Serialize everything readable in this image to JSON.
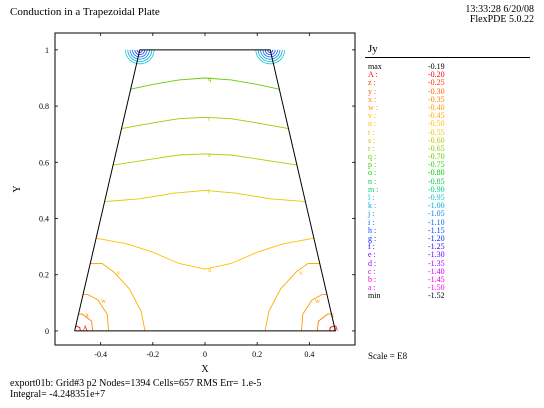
{
  "header": {
    "title": "Conduction in a Trapezoidal Plate",
    "time_date": "13:33:28 6/20/08",
    "version": "FlexPDE 5.0.22"
  },
  "footer": {
    "line1": "export01b:  Grid#3  p2  Nodes=1394 Cells=657 RMS Err= 1.e-5",
    "line2": "Integral= -4.248351e+7"
  },
  "legend": {
    "variable": "Jy",
    "max": {
      "key": "max",
      "value": "-0.19"
    },
    "levels": [
      {
        "key": "A :",
        "value": "-0.20",
        "color": "#ff0000"
      },
      {
        "key": "z :",
        "value": "-0.25",
        "color": "#ff3300"
      },
      {
        "key": "y :",
        "value": "-0.30",
        "color": "#ff6600"
      },
      {
        "key": "x :",
        "value": "-0.35",
        "color": "#ff8000"
      },
      {
        "key": "w :",
        "value": "-0.40",
        "color": "#ff9900"
      },
      {
        "key": "v :",
        "value": "-0.45",
        "color": "#ffad00"
      },
      {
        "key": "u :",
        "value": "-0.50",
        "color": "#ffc000"
      },
      {
        "key": "t :",
        "value": "-0.55",
        "color": "#e6c800"
      },
      {
        "key": "s :",
        "value": "-0.60",
        "color": "#bcc800"
      },
      {
        "key": "r :",
        "value": "-0.65",
        "color": "#99cc00"
      },
      {
        "key": "q :",
        "value": "-0.70",
        "color": "#66cc00"
      },
      {
        "key": "p :",
        "value": "-0.75",
        "color": "#33cc00"
      },
      {
        "key": "o :",
        "value": "-0.80",
        "color": "#00cc00"
      },
      {
        "key": "n :",
        "value": "-0.85",
        "color": "#00cc44"
      },
      {
        "key": "m :",
        "value": "-0.90",
        "color": "#00cc88"
      },
      {
        "key": "l :",
        "value": "-0.95",
        "color": "#00cccc"
      },
      {
        "key": "k :",
        "value": "-1.00",
        "color": "#00aadd"
      },
      {
        "key": "j :",
        "value": "-1.05",
        "color": "#0088ee"
      },
      {
        "key": "i :",
        "value": "-1.10",
        "color": "#0066ff"
      },
      {
        "key": "h :",
        "value": "-1.15",
        "color": "#0044ff"
      },
      {
        "key": "g :",
        "value": "-1.20",
        "color": "#0022ff"
      },
      {
        "key": "f :",
        "value": "-1.25",
        "color": "#3300ff"
      },
      {
        "key": "e :",
        "value": "-1.30",
        "color": "#6600ff"
      },
      {
        "key": "d :",
        "value": "-1.35",
        "color": "#9900ff"
      },
      {
        "key": "c :",
        "value": "-1.40",
        "color": "#cc00ff"
      },
      {
        "key": "b :",
        "value": "-1.45",
        "color": "#e600cc"
      },
      {
        "key": "a :",
        "value": "-1.50",
        "color": "#ff00ff"
      }
    ],
    "min": {
      "key": "min",
      "value": "-1.52"
    },
    "scale": "Scale = E8"
  },
  "chart_data": {
    "type": "contour",
    "title": "Conduction in a Trapezoidal Plate",
    "variable": "Jy",
    "xlabel": "X",
    "ylabel": "Y",
    "xlim": [
      -0.575,
      0.575
    ],
    "ylim": [
      -0.05,
      1.06
    ],
    "xticks": [
      -0.4,
      -0.2,
      0,
      0.2,
      0.4
    ],
    "yticks": [
      0,
      0.2,
      0.4,
      0.6,
      0.8,
      1
    ],
    "domain_outline": [
      [
        -0.5,
        0
      ],
      [
        0.5,
        0
      ],
      [
        0.25,
        1
      ],
      [
        -0.25,
        1
      ],
      [
        -0.5,
        0
      ]
    ],
    "contours": [
      {
        "label": "q",
        "level": -0.7,
        "points": [
          [
            -0.285,
            0.86
          ],
          [
            -0.2,
            0.877
          ],
          [
            -0.1,
            0.893
          ],
          [
            0,
            0.9
          ],
          [
            0.1,
            0.893
          ],
          [
            0.2,
            0.877
          ],
          [
            0.285,
            0.86
          ]
        ]
      },
      {
        "label": "r",
        "level": -0.65,
        "points": [
          [
            -0.32,
            0.72
          ],
          [
            -0.2,
            0.74
          ],
          [
            -0.1,
            0.755
          ],
          [
            0,
            0.76
          ],
          [
            0.1,
            0.755
          ],
          [
            0.2,
            0.74
          ],
          [
            0.32,
            0.72
          ]
        ]
      },
      {
        "label": "s",
        "level": -0.6,
        "points": [
          [
            -0.352,
            0.59
          ],
          [
            -0.2,
            0.612
          ],
          [
            -0.1,
            0.626
          ],
          [
            0,
            0.63
          ],
          [
            0.1,
            0.626
          ],
          [
            0.2,
            0.612
          ],
          [
            0.352,
            0.59
          ]
        ]
      },
      {
        "label": "t",
        "level": -0.55,
        "points": [
          [
            -0.385,
            0.46
          ],
          [
            -0.25,
            0.47
          ],
          [
            -0.12,
            0.49
          ],
          [
            0,
            0.5
          ],
          [
            0.12,
            0.49
          ],
          [
            0.25,
            0.47
          ],
          [
            0.385,
            0.46
          ]
        ]
      },
      {
        "label": "u",
        "level": -0.5,
        "points": [
          [
            -0.417,
            0.33
          ],
          [
            -0.3,
            0.31
          ],
          [
            -0.2,
            0.28
          ],
          [
            -0.1,
            0.24
          ],
          [
            0,
            0.22
          ],
          [
            0.1,
            0.24
          ],
          [
            0.2,
            0.28
          ],
          [
            0.3,
            0.31
          ],
          [
            0.417,
            0.33
          ]
        ]
      },
      {
        "label": "v",
        "level": -0.45,
        "points": [
          [
            -0.23,
            0
          ],
          [
            -0.245,
            0.07
          ],
          [
            -0.29,
            0.15
          ],
          [
            -0.35,
            0.21
          ],
          [
            -0.395,
            0.24
          ],
          [
            -0.44,
            0.24
          ]
        ]
      },
      {
        "label": "v",
        "level": -0.45,
        "points": [
          [
            0.23,
            0
          ],
          [
            0.245,
            0.07
          ],
          [
            0.29,
            0.15
          ],
          [
            0.35,
            0.21
          ],
          [
            0.395,
            0.24
          ],
          [
            0.44,
            0.24
          ]
        ]
      },
      {
        "label": "w",
        "level": -0.4,
        "points": [
          [
            -0.37,
            0
          ],
          [
            -0.375,
            0.06
          ],
          [
            -0.41,
            0.11
          ],
          [
            -0.45,
            0.13
          ],
          [
            -0.468,
            0.13
          ]
        ]
      },
      {
        "label": "w",
        "level": -0.4,
        "points": [
          [
            0.37,
            0
          ],
          [
            0.375,
            0.06
          ],
          [
            0.41,
            0.11
          ],
          [
            0.45,
            0.13
          ],
          [
            0.468,
            0.13
          ]
        ]
      },
      {
        "label": "x",
        "level": -0.35,
        "points": [
          [
            -0.43,
            0
          ],
          [
            -0.435,
            0.035
          ],
          [
            -0.47,
            0.06
          ],
          [
            -0.485,
            0.06
          ]
        ]
      },
      {
        "label": "x",
        "level": -0.35,
        "points": [
          [
            0.43,
            0
          ],
          [
            0.435,
            0.035
          ],
          [
            0.47,
            0.06
          ],
          [
            0.485,
            0.06
          ]
        ]
      },
      {
        "label": "A",
        "level": -0.2,
        "points": [
          [
            -0.478,
            0
          ],
          [
            -0.48,
            0.012
          ],
          [
            -0.495,
            0.018
          ]
        ]
      },
      {
        "label": "A",
        "level": -0.2,
        "points": [
          [
            0.478,
            0
          ],
          [
            0.48,
            0.012
          ],
          [
            0.495,
            0.018
          ]
        ]
      }
    ]
  }
}
